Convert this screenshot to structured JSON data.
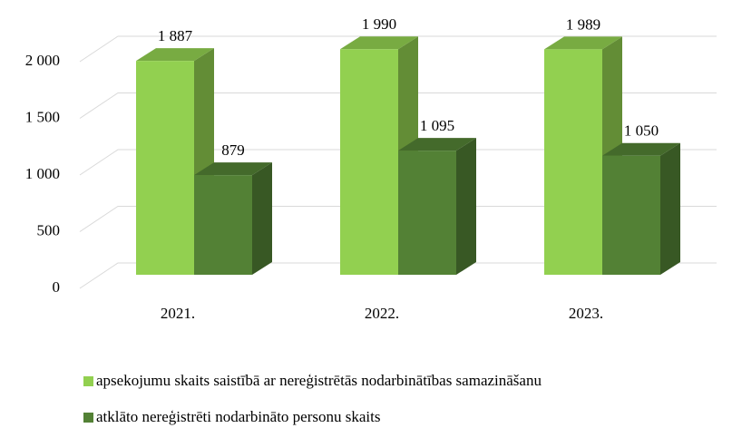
{
  "chart_data": {
    "type": "bar3d",
    "categories": [
      "2021.",
      "2022.",
      "2023."
    ],
    "series": [
      {
        "name": "apsekojumu skaits saistībā ar nereģistrētās nodarbinātības samazināšanu",
        "color": "#92d050",
        "values": [
          1887,
          1990,
          1989
        ],
        "value_labels": [
          "1 887",
          "1 990",
          "1 989"
        ]
      },
      {
        "name": "atklāto nereģistrēti nodarbināto personu skaits",
        "color": "#538135",
        "values": [
          879,
          1095,
          1050
        ],
        "value_labels": [
          "879",
          "1 095",
          "1 050"
        ]
      }
    ],
    "ylim": [
      0,
      2000
    ],
    "yticks": [
      0,
      500,
      {
        "value": 1000,
        "label": "1 000"
      },
      {
        "value": 1500,
        "label": "1 500"
      },
      {
        "value": 2000,
        "label": "2 000"
      }
    ],
    "grid": true
  }
}
